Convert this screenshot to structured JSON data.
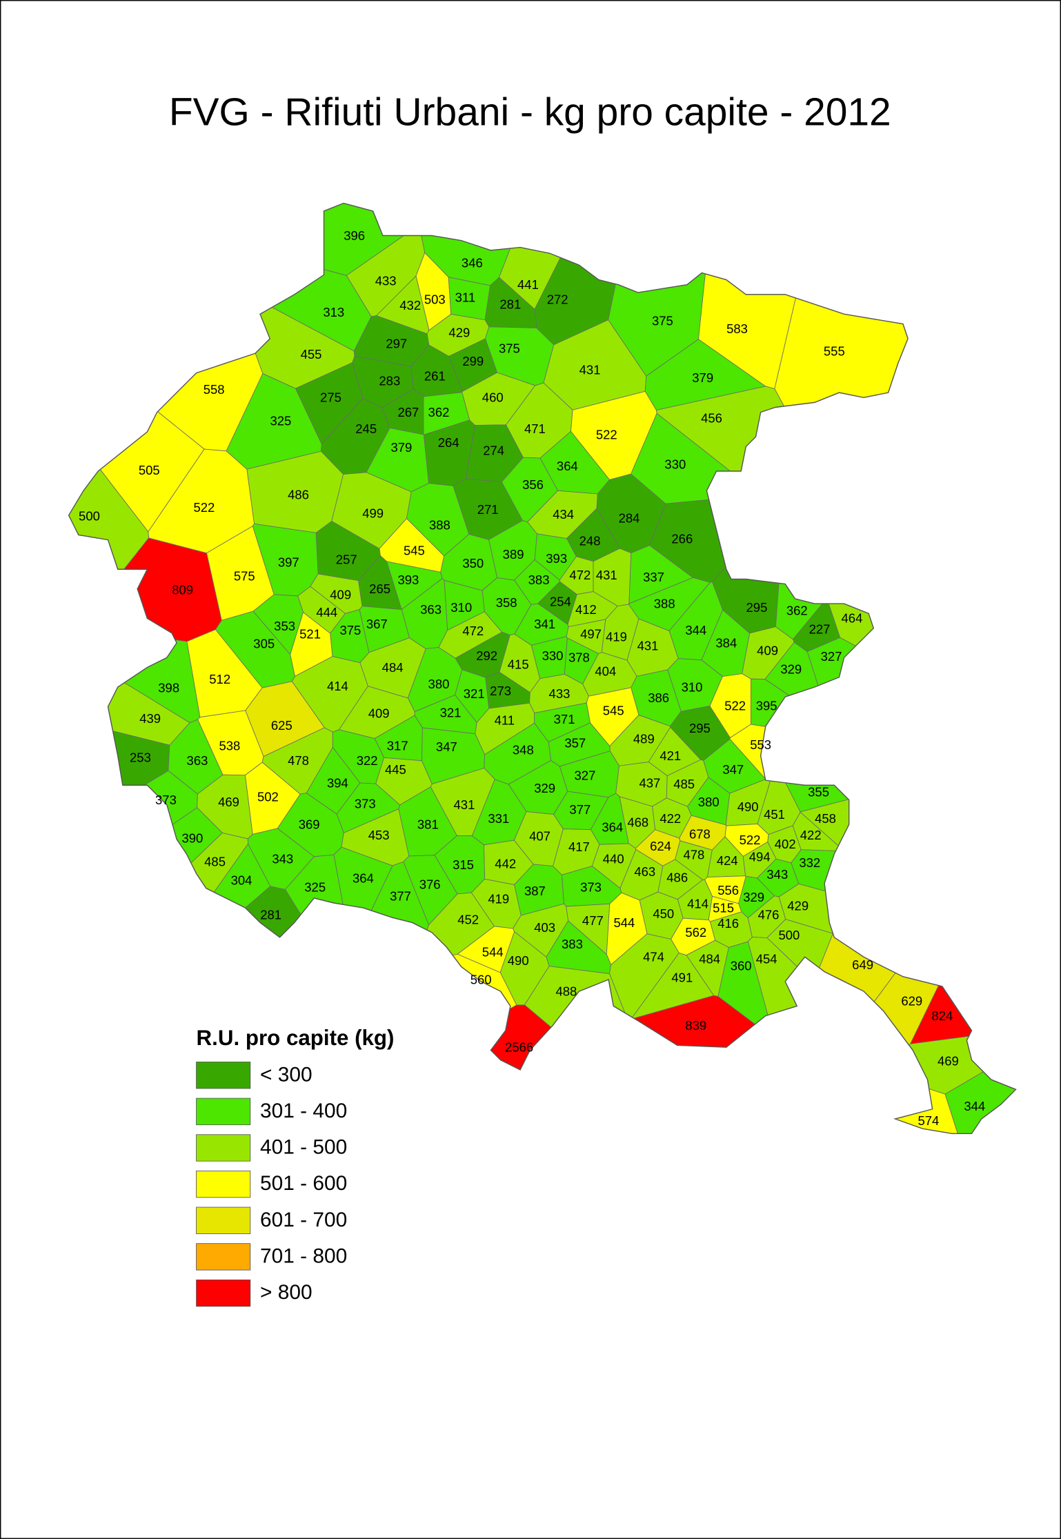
{
  "title": "FVG - Rifiuti Urbani - kg pro capite - 2012",
  "legend": {
    "title": "R.U. pro capite (kg)",
    "items": [
      {
        "label": "< 300",
        "color": "#38a800"
      },
      {
        "label": "301 - 400",
        "color": "#4ce600"
      },
      {
        "label": "401 - 500",
        "color": "#98e600"
      },
      {
        "label": "501 - 600",
        "color": "#ffff00"
      },
      {
        "label": "601 - 700",
        "color": "#e6e600"
      },
      {
        "label": "701 - 800",
        "color": "#ffaa00"
      },
      {
        "label": "> 800",
        "color": "#ff0000"
      }
    ]
  },
  "municipalities": [
    396,
    346,
    441,
    272,
    433,
    503,
    311,
    281,
    432,
    313,
    429,
    375,
    375,
    583,
    555,
    455,
    297,
    299,
    261,
    283,
    431,
    379,
    558,
    275,
    460,
    267,
    362,
    325,
    245,
    456,
    471,
    522,
    379,
    264,
    274,
    364,
    330,
    505,
    356,
    486,
    522,
    500,
    499,
    271,
    434,
    284,
    388,
    266,
    545,
    248,
    257,
    389,
    393,
    350,
    575,
    397,
    472,
    431,
    337,
    809,
    393,
    265,
    383,
    409,
    444,
    358,
    254,
    412,
    310,
    363,
    388,
    295,
    362,
    227,
    464,
    353,
    521,
    375,
    367,
    472,
    341,
    497,
    419,
    344,
    431,
    384,
    409,
    327,
    305,
    415,
    330,
    378,
    292,
    484,
    404,
    329,
    512,
    398,
    414,
    380,
    321,
    273,
    310,
    433,
    386,
    545,
    522,
    395,
    439,
    409,
    321,
    411,
    371,
    625,
    295,
    489,
    538,
    317,
    347,
    357,
    348,
    421,
    553,
    253,
    363,
    478,
    322,
    445,
    327,
    437,
    485,
    347,
    394,
    329,
    502,
    373,
    469,
    373,
    431,
    380,
    490,
    355,
    451,
    458,
    377,
    331,
    468,
    422,
    364,
    369,
    381,
    407,
    678,
    453,
    522,
    402,
    422,
    390,
    417,
    624,
    478,
    494,
    440,
    442,
    315,
    424,
    332,
    343,
    463,
    486,
    343,
    485,
    304,
    364,
    325,
    376,
    373,
    556,
    387,
    329,
    377,
    419,
    414,
    515,
    429,
    450,
    476,
    281,
    452,
    477,
    544,
    416,
    403,
    562,
    500,
    383,
    544,
    474,
    484,
    454,
    490,
    360,
    649,
    491,
    560,
    488,
    629,
    824,
    839,
    2566,
    469,
    344,
    574
  ]
}
